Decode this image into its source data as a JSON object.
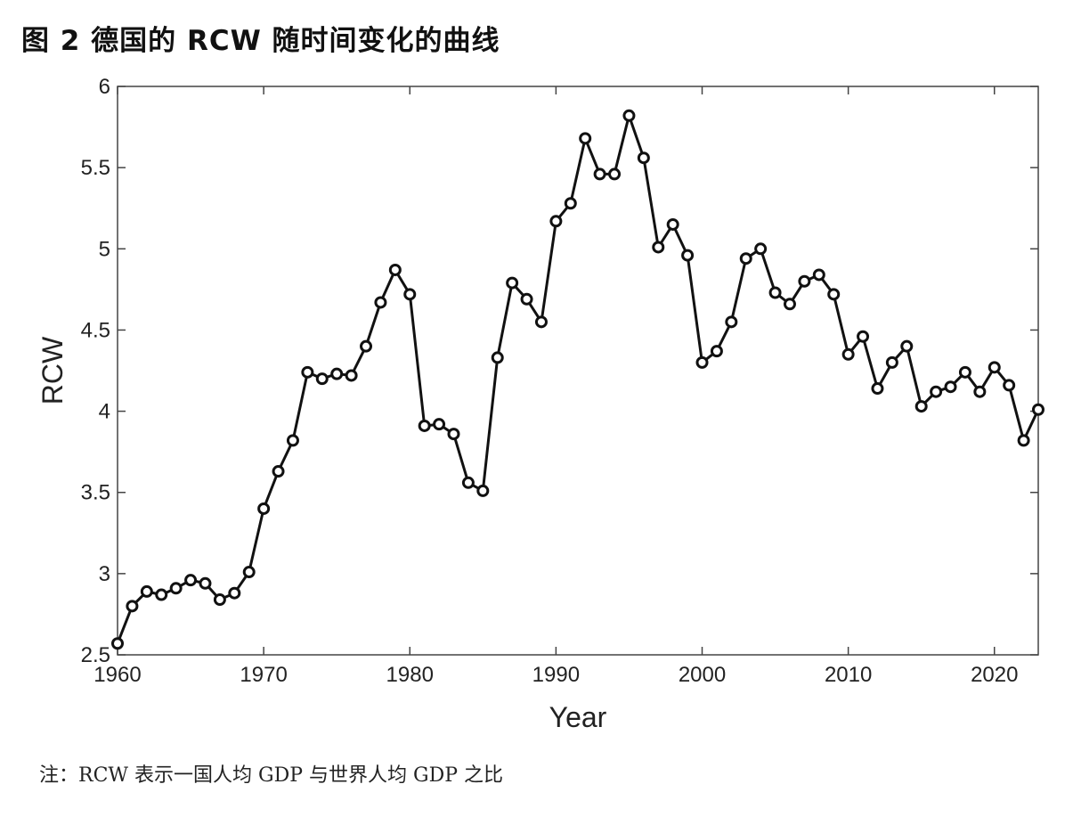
{
  "figure": {
    "title": "图 2  德国的 RCW 随时间变化的曲线",
    "note": "注：RCW 表示一国人均 GDP 与世界人均 GDP 之比"
  },
  "chart_data": {
    "type": "line",
    "title": "",
    "xlabel": "Year",
    "ylabel": "RCW",
    "xlim": [
      1960,
      2023
    ],
    "ylim": [
      2.5,
      6
    ],
    "xticks": [
      "1960",
      "1970",
      "1980",
      "1990",
      "2000",
      "2010",
      "2020"
    ],
    "yticks": [
      "2.5",
      "3",
      "3.5",
      "4",
      "4.5",
      "5",
      "5.5",
      "6"
    ],
    "grid": false,
    "line_color": "#111111",
    "series": [
      {
        "x": [
          1960,
          1961,
          1962,
          1963,
          1964,
          1965,
          1966,
          1967,
          1968,
          1969,
          1970,
          1971,
          1972,
          1973,
          1974,
          1975,
          1976,
          1977,
          1978,
          1979,
          1980,
          1981,
          1982,
          1983,
          1984,
          1985,
          1986,
          1987,
          1988,
          1989,
          1990,
          1991,
          1992,
          1993,
          1994,
          1995,
          1996,
          1997,
          1998,
          1999,
          2000,
          2001,
          2002,
          2003,
          2004,
          2005,
          2006,
          2007,
          2008,
          2009,
          2010,
          2011,
          2012,
          2013,
          2014,
          2015,
          2016,
          2017,
          2018,
          2019,
          2020,
          2021,
          2022,
          2023
        ],
        "values": [
          2.57,
          2.8,
          2.89,
          2.87,
          2.91,
          2.96,
          2.94,
          2.84,
          2.88,
          3.01,
          3.4,
          3.63,
          3.82,
          4.24,
          4.2,
          4.23,
          4.22,
          4.4,
          4.67,
          4.87,
          4.72,
          3.91,
          3.92,
          3.86,
          3.56,
          3.51,
          4.33,
          4.79,
          4.69,
          4.55,
          5.17,
          5.28,
          5.68,
          5.46,
          5.46,
          5.82,
          5.56,
          5.01,
          5.15,
          4.96,
          4.3,
          4.37,
          4.55,
          4.94,
          5.0,
          4.73,
          4.66,
          4.8,
          4.84,
          4.72,
          4.35,
          4.46,
          4.14,
          4.3,
          4.4,
          4.03,
          4.12,
          4.15,
          4.24,
          4.12,
          4.27,
          4.16,
          3.82,
          4.01
        ]
      }
    ]
  }
}
